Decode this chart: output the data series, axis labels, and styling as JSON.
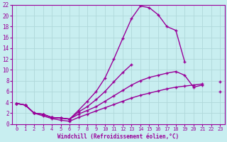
{
  "background_color": "#c8eef0",
  "line_color": "#990099",
  "xlabel": "Windchill (Refroidissement éolien,°C)",
  "xlim": [
    -0.5,
    23.5
  ],
  "ylim": [
    0,
    22
  ],
  "xticks": [
    0,
    1,
    2,
    3,
    4,
    5,
    6,
    7,
    8,
    9,
    10,
    11,
    12,
    13,
    14,
    15,
    16,
    17,
    18,
    19,
    20,
    21,
    22,
    23
  ],
  "yticks": [
    0,
    2,
    4,
    6,
    8,
    10,
    12,
    14,
    16,
    18,
    20,
    22
  ],
  "series": [
    {
      "x": [
        0,
        1,
        2,
        3,
        4,
        5,
        6,
        7,
        8,
        9,
        10,
        11,
        12,
        13,
        14,
        15,
        16,
        17,
        18,
        19,
        20,
        21,
        22,
        23
      ],
      "y": [
        3.8,
        3.5,
        2.0,
        1.8,
        1.2,
        1.1,
        0.9,
        2.5,
        4.2,
        6.0,
        8.5,
        12.0,
        15.8,
        19.5,
        21.8,
        21.5,
        20.2,
        18.0,
        17.3,
        11.5,
        null,
        null,
        null,
        null
      ]
    },
    {
      "x": [
        0,
        1,
        2,
        3,
        4,
        5,
        6,
        7,
        8,
        9,
        10,
        11,
        12,
        13,
        14,
        15,
        16,
        17,
        18,
        19,
        20,
        21,
        22,
        23
      ],
      "y": [
        3.8,
        3.5,
        2.0,
        1.8,
        1.2,
        1.1,
        0.9,
        2.2,
        3.2,
        4.5,
        6.0,
        7.8,
        9.5,
        11.0,
        null,
        null,
        null,
        null,
        null,
        null,
        null,
        null,
        null,
        null
      ]
    },
    {
      "x": [
        0,
        1,
        2,
        3,
        4,
        5,
        6,
        7,
        8,
        9,
        10,
        11,
        12,
        13,
        14,
        15,
        16,
        17,
        18,
        19,
        20,
        21,
        22,
        23
      ],
      "y": [
        3.8,
        3.5,
        2.0,
        1.8,
        1.2,
        1.1,
        0.9,
        1.8,
        2.5,
        3.2,
        4.2,
        5.2,
        6.2,
        7.2,
        8.0,
        8.6,
        9.0,
        9.4,
        9.7,
        9.0,
        6.8,
        7.2,
        null,
        6.0
      ]
    },
    {
      "x": [
        0,
        1,
        2,
        3,
        4,
        5,
        6,
        7,
        8,
        9,
        10,
        11,
        12,
        13,
        14,
        15,
        16,
        17,
        18,
        19,
        20,
        21,
        22,
        23
      ],
      "y": [
        3.8,
        3.5,
        2.0,
        1.5,
        1.0,
        0.7,
        0.5,
        1.2,
        1.8,
        2.4,
        3.0,
        3.6,
        4.2,
        4.8,
        5.3,
        5.7,
        6.1,
        6.5,
        6.8,
        7.0,
        7.2,
        7.4,
        null,
        7.8
      ]
    }
  ]
}
